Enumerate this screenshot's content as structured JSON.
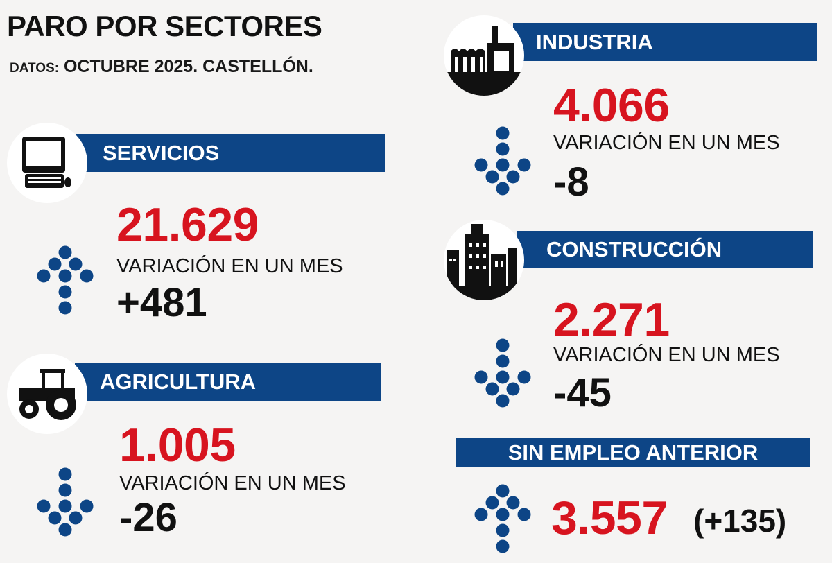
{
  "header": {
    "title": "PARO POR SECTORES",
    "subtitle_prefix": "DATOS:",
    "subtitle": "OCTUBRE 2025. CASTELLÓN."
  },
  "colors": {
    "bar": "#0d4586",
    "value": "#d7141f",
    "background": "#f5f4f3"
  },
  "variation_label": "VARIACIÓN EN UN MES",
  "sectors": [
    {
      "name": "SERVICIOS",
      "icon": "computer-icon",
      "value": "21.629",
      "change": "+481",
      "trend": "up"
    },
    {
      "name": "AGRICULTURA",
      "icon": "tractor-icon",
      "value": "1.005",
      "change": "-26",
      "trend": "down"
    },
    {
      "name": "INDUSTRIA",
      "icon": "factory-icon",
      "value": "4.066",
      "change": "-8",
      "trend": "down"
    },
    {
      "name": "CONSTRUCCIÓN",
      "icon": "buildings-icon",
      "value": "2.271",
      "change": "-45",
      "trend": "down"
    },
    {
      "name": "SIN EMPLEO ANTERIOR",
      "value": "3.557",
      "change": "(+135)",
      "trend": "up"
    }
  ]
}
